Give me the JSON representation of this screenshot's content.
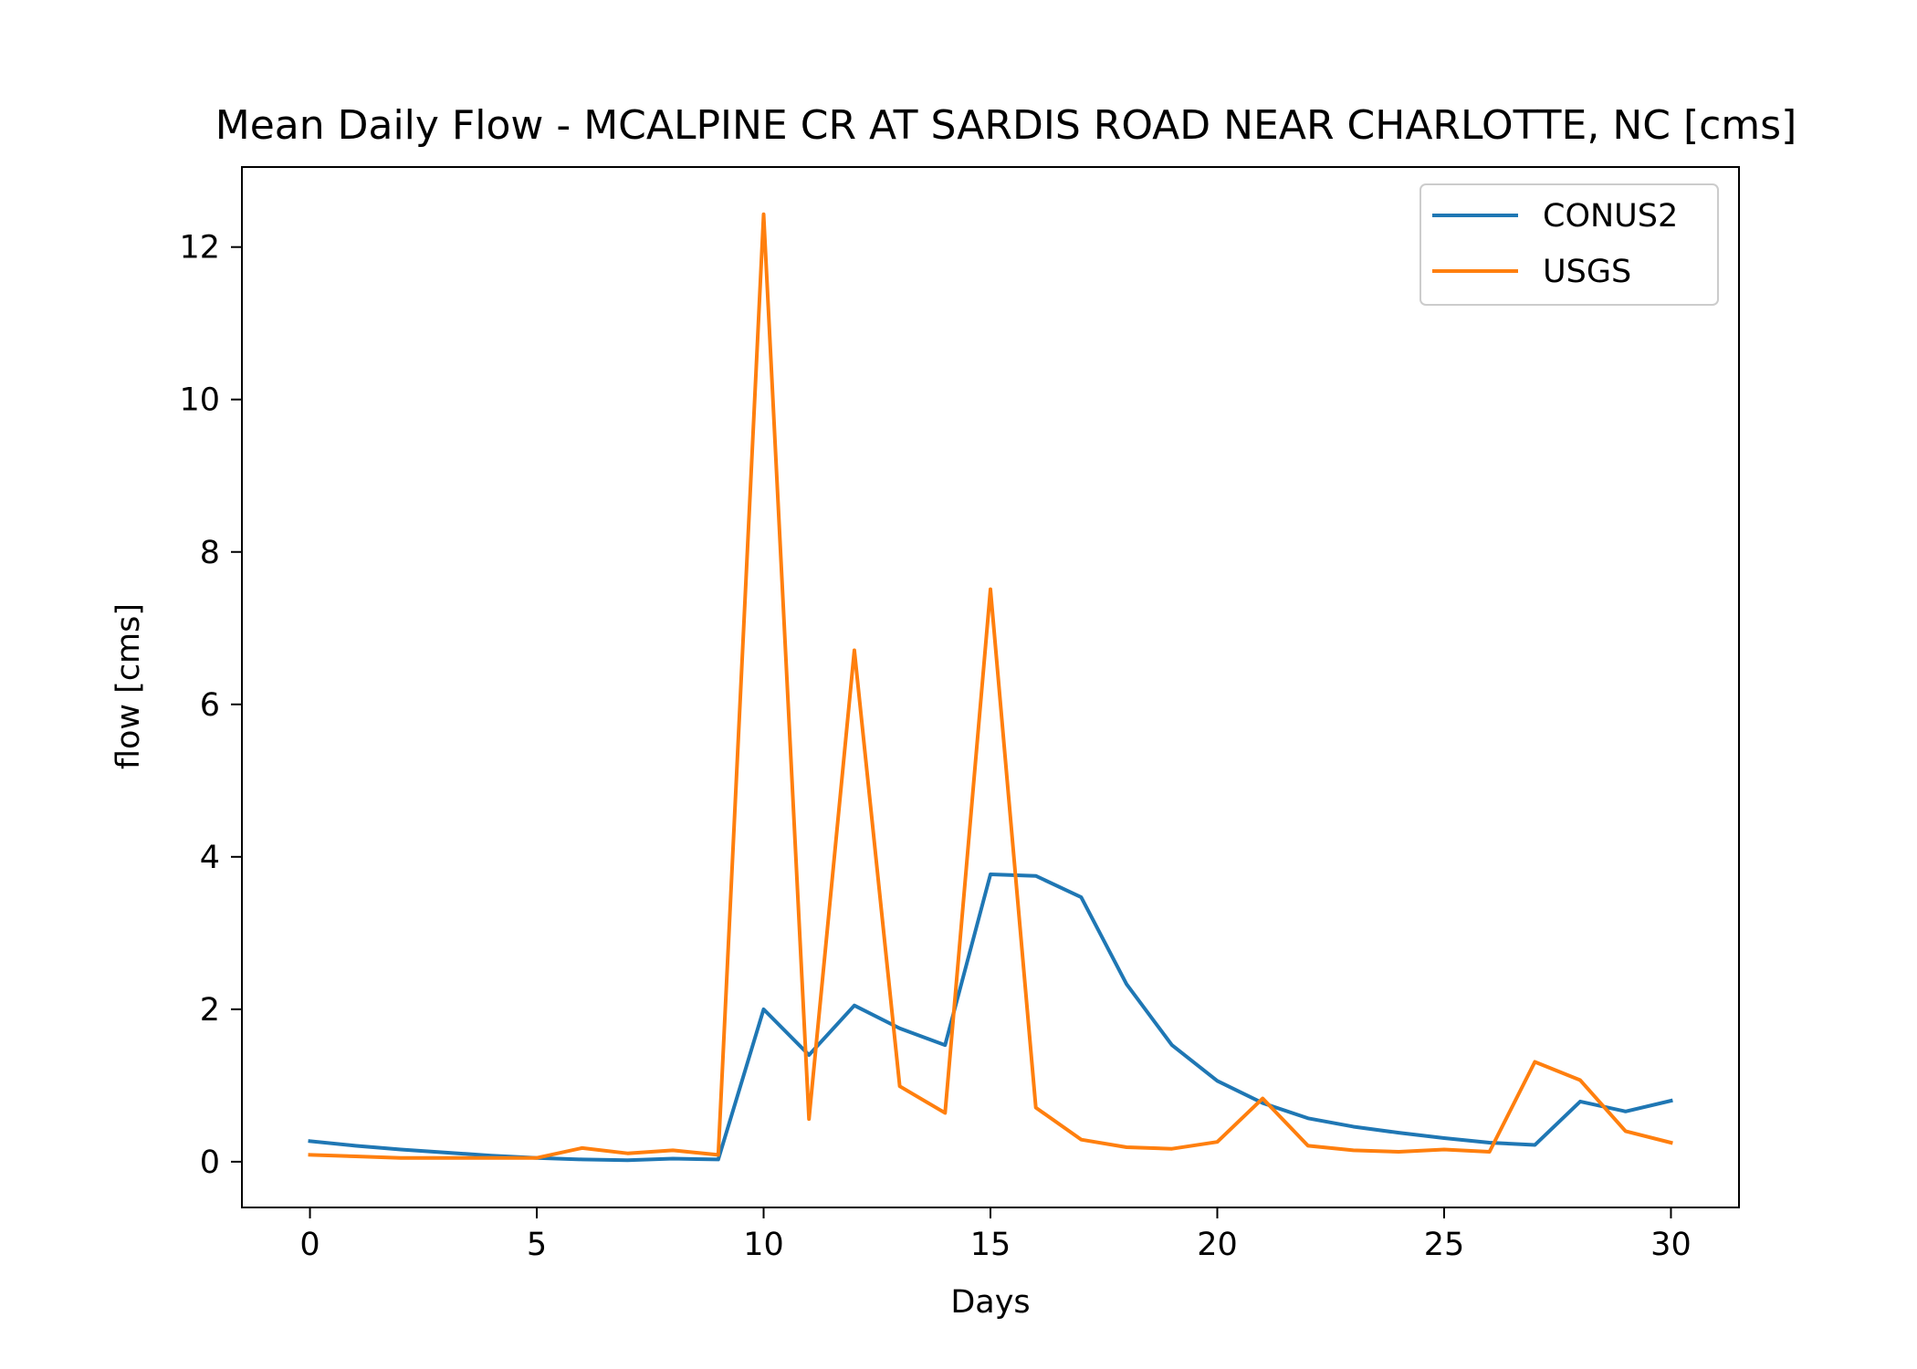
{
  "chart_data": {
    "type": "line",
    "title": "Mean Daily Flow - MCALPINE CR AT SARDIS ROAD NEAR CHARLOTTE, NC [cms]",
    "xlabel": "Days",
    "ylabel": "flow [cms]",
    "xlim": [
      -1.5,
      31.5
    ],
    "ylim": [
      -0.6,
      13.05
    ],
    "x_ticks": [
      0,
      5,
      10,
      15,
      20,
      25,
      30
    ],
    "y_ticks": [
      0,
      2,
      4,
      6,
      8,
      10,
      12
    ],
    "grid": false,
    "legend_position": "top-right",
    "x": [
      0,
      1,
      2,
      3,
      4,
      5,
      6,
      7,
      8,
      9,
      10,
      11,
      12,
      13,
      14,
      15,
      16,
      17,
      18,
      19,
      20,
      21,
      22,
      23,
      24,
      25,
      26,
      27,
      28,
      29,
      30
    ],
    "series": [
      {
        "name": "CONUS2",
        "color": "#1f77b4",
        "values": [
          0.27,
          0.21,
          0.16,
          0.12,
          0.08,
          0.05,
          0.03,
          0.02,
          0.04,
          0.03,
          2.0,
          1.4,
          2.05,
          1.75,
          1.53,
          3.77,
          3.75,
          3.47,
          2.33,
          1.53,
          1.06,
          0.77,
          0.57,
          0.46,
          0.38,
          0.31,
          0.25,
          0.22,
          0.79,
          0.66,
          0.8
        ]
      },
      {
        "name": "USGS",
        "color": "#ff7f0e",
        "values": [
          0.09,
          0.07,
          0.05,
          0.05,
          0.05,
          0.05,
          0.18,
          0.11,
          0.15,
          0.09,
          12.43,
          0.56,
          6.71,
          0.99,
          0.64,
          7.51,
          0.71,
          0.29,
          0.19,
          0.17,
          0.26,
          0.83,
          0.21,
          0.15,
          0.13,
          0.16,
          0.13,
          1.31,
          1.07,
          0.4,
          0.25
        ]
      }
    ]
  }
}
